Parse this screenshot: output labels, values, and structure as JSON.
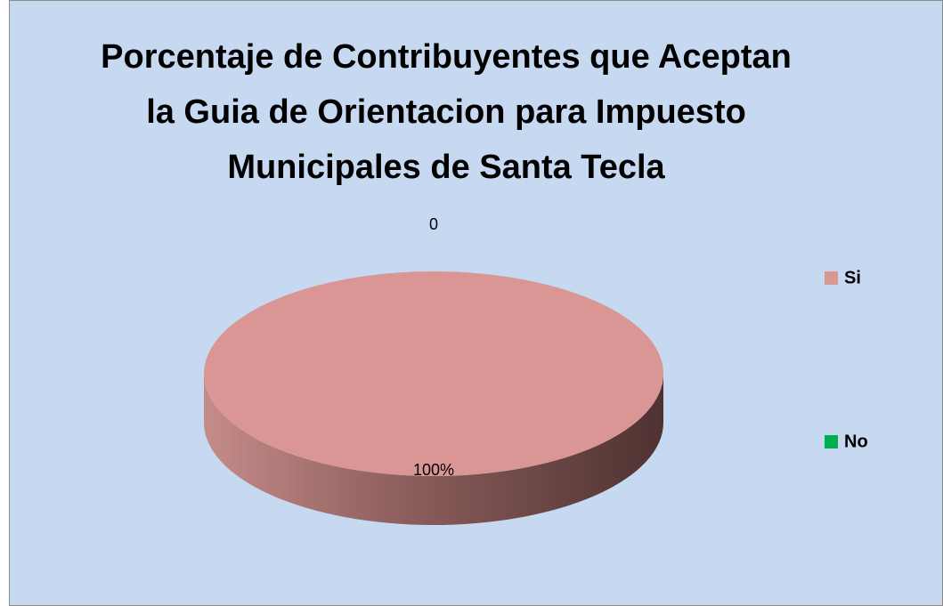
{
  "chart_data": {
    "type": "pie",
    "title": "Porcentaje de Contribuyentes que Aceptan la Guia de Orientacion para Impuesto Municipales de Santa Tecla",
    "categories": [
      "Si",
      "No"
    ],
    "values": [
      100,
      0
    ],
    "value_labels": [
      "100%",
      "0"
    ],
    "colors": [
      "#d99694",
      "#00b050"
    ],
    "legend": "right"
  }
}
